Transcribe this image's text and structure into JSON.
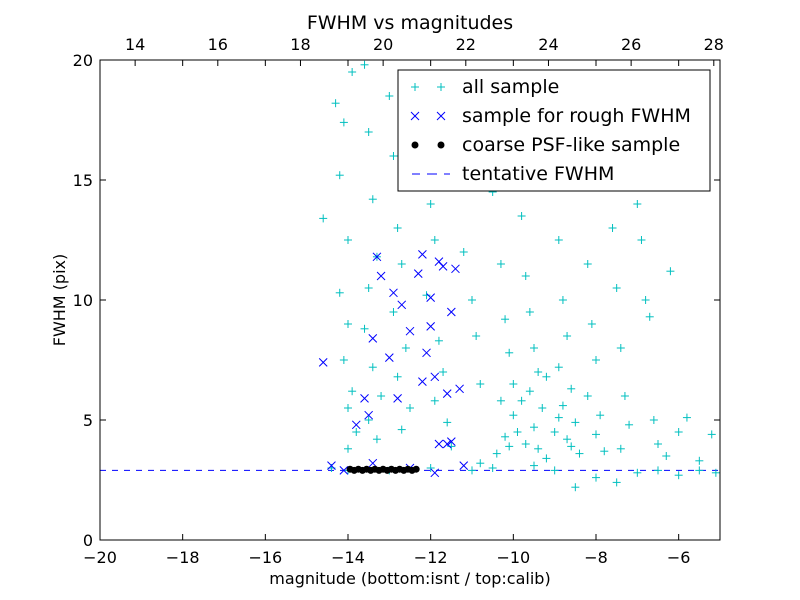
{
  "chart_data": {
    "type": "scatter",
    "title": "FWHM vs magnitudes",
    "xlabel": "magnitude (bottom:isnt / top:calib)",
    "ylabel": "FWHM (pix)",
    "xlim": [
      -20,
      -5
    ],
    "ylim": [
      0,
      20
    ],
    "top_xlim": [
      13.15,
      28.15
    ],
    "x_ticks": [
      -20,
      -18,
      -16,
      -14,
      -12,
      -10,
      -8,
      -6
    ],
    "x_tick_labels": [
      "−20",
      "−18",
      "−16",
      "−14",
      "−12",
      "−10",
      "−8",
      "−6"
    ],
    "top_ticks": [
      14,
      16,
      18,
      20,
      22,
      24,
      26,
      28
    ],
    "top_tick_labels": [
      "14",
      "16",
      "18",
      "20",
      "22",
      "24",
      "26",
      "28"
    ],
    "y_ticks": [
      0,
      5,
      10,
      15,
      20
    ],
    "y_tick_labels": [
      "0",
      "5",
      "10",
      "15",
      "20"
    ],
    "grid": false,
    "legend_position": "top-right",
    "tentative_fwhm": 2.9,
    "series": [
      {
        "name": "all sample",
        "marker": "plus",
        "color": "#00bfbf",
        "points": [
          [
            -14.6,
            13.4
          ],
          [
            -14.3,
            18.2
          ],
          [
            -14.2,
            15.2
          ],
          [
            -14.1,
            17.4
          ],
          [
            -14.0,
            12.5
          ],
          [
            -14.2,
            10.3
          ],
          [
            -14.0,
            9.0
          ],
          [
            -14.1,
            7.5
          ],
          [
            -13.9,
            6.2
          ],
          [
            -14.0,
            5.5
          ],
          [
            -13.8,
            4.5
          ],
          [
            -14.0,
            3.8
          ],
          [
            -13.9,
            19.5
          ],
          [
            -13.6,
            19.8
          ],
          [
            -13.5,
            17.0
          ],
          [
            -13.4,
            14.2
          ],
          [
            -13.3,
            11.8
          ],
          [
            -13.5,
            10.5
          ],
          [
            -13.6,
            8.8
          ],
          [
            -13.4,
            7.2
          ],
          [
            -13.2,
            6.0
          ],
          [
            -13.5,
            5.0
          ],
          [
            -13.3,
            4.2
          ],
          [
            -13.0,
            18.5
          ],
          [
            -12.9,
            16.0
          ],
          [
            -12.8,
            13.0
          ],
          [
            -12.7,
            11.5
          ],
          [
            -12.9,
            9.5
          ],
          [
            -12.6,
            8.0
          ],
          [
            -12.8,
            6.8
          ],
          [
            -12.5,
            5.5
          ],
          [
            -12.7,
            4.6
          ],
          [
            -12.3,
            19.0
          ],
          [
            -12.2,
            15.5
          ],
          [
            -12.0,
            14.0
          ],
          [
            -11.9,
            12.5
          ],
          [
            -12.1,
            10.2
          ],
          [
            -11.8,
            8.3
          ],
          [
            -11.7,
            7.0
          ],
          [
            -11.9,
            5.8
          ],
          [
            -11.6,
            4.9
          ],
          [
            -11.5,
            3.9
          ],
          [
            -11.3,
            16.0
          ],
          [
            -11.2,
            12.0
          ],
          [
            -11.0,
            10.0
          ],
          [
            -10.9,
            8.5
          ],
          [
            -10.8,
            6.5
          ],
          [
            -10.6,
            18.5
          ],
          [
            -10.5,
            14.5
          ],
          [
            -10.3,
            11.5
          ],
          [
            -10.2,
            9.2
          ],
          [
            -10.1,
            7.8
          ],
          [
            -10.0,
            6.5
          ],
          [
            -10.0,
            5.2
          ],
          [
            -10.2,
            4.3
          ],
          [
            -10.4,
            3.6
          ],
          [
            -9.9,
            19.0
          ],
          [
            -9.8,
            13.5
          ],
          [
            -9.7,
            11.0
          ],
          [
            -9.6,
            9.5
          ],
          [
            -9.5,
            8.0
          ],
          [
            -9.4,
            7.0
          ],
          [
            -9.6,
            6.2
          ],
          [
            -9.3,
            5.5
          ],
          [
            -9.5,
            4.7
          ],
          [
            -9.7,
            4.0
          ],
          [
            -9.2,
            3.4
          ],
          [
            -9.0,
            17.5
          ],
          [
            -8.9,
            12.5
          ],
          [
            -8.8,
            10.0
          ],
          [
            -8.7,
            8.5
          ],
          [
            -8.9,
            7.2
          ],
          [
            -8.6,
            6.3
          ],
          [
            -8.8,
            5.6
          ],
          [
            -8.5,
            4.9
          ],
          [
            -8.7,
            4.2
          ],
          [
            -8.4,
            3.6
          ],
          [
            -8.3,
            15.0
          ],
          [
            -8.2,
            11.5
          ],
          [
            -8.1,
            9.0
          ],
          [
            -8.0,
            7.5
          ],
          [
            -8.2,
            6.0
          ],
          [
            -7.9,
            5.2
          ],
          [
            -8.0,
            4.4
          ],
          [
            -7.8,
            3.7
          ],
          [
            -7.6,
            13.0
          ],
          [
            -7.5,
            10.5
          ],
          [
            -7.4,
            8.0
          ],
          [
            -7.3,
            6.0
          ],
          [
            -7.2,
            4.8
          ],
          [
            -7.4,
            3.8
          ],
          [
            -7.0,
            14.0
          ],
          [
            -6.9,
            12.5
          ],
          [
            -6.8,
            10.0
          ],
          [
            -6.7,
            9.3
          ],
          [
            -6.6,
            5.0
          ],
          [
            -6.5,
            4.0
          ],
          [
            -6.3,
            3.5
          ],
          [
            -6.2,
            11.2
          ],
          [
            -6.0,
            4.5
          ],
          [
            -5.8,
            5.1
          ],
          [
            -5.5,
            3.3
          ],
          [
            -5.2,
            4.4
          ],
          [
            -5.1,
            2.8
          ],
          [
            -10.5,
            3.0
          ],
          [
            -9.0,
            2.9
          ],
          [
            -8.0,
            2.6
          ],
          [
            -7.5,
            2.4
          ],
          [
            -7.0,
            2.8
          ],
          [
            -6.5,
            2.9
          ],
          [
            -6.0,
            2.7
          ],
          [
            -5.5,
            2.9
          ],
          [
            -8.5,
            2.2
          ],
          [
            -9.5,
            3.1
          ],
          [
            -10.8,
            3.2
          ],
          [
            -11.0,
            2.9
          ],
          [
            -12.0,
            3.0
          ],
          [
            -13.0,
            2.9
          ],
          [
            -14.0,
            2.9
          ],
          [
            -14.4,
            3.0
          ],
          [
            -9.8,
            5.8
          ],
          [
            -9.2,
            6.8
          ],
          [
            -10.3,
            5.8
          ],
          [
            -9.0,
            4.5
          ],
          [
            -8.6,
            3.9
          ],
          [
            -9.9,
            4.5
          ],
          [
            -10.1,
            3.9
          ],
          [
            -9.4,
            3.8
          ],
          [
            -8.9,
            5.1
          ]
        ]
      },
      {
        "name": "sample for rough FWHM",
        "marker": "x",
        "color": "#0000ff",
        "points": [
          [
            -14.6,
            7.4
          ],
          [
            -14.4,
            3.1
          ],
          [
            -14.1,
            2.9
          ],
          [
            -13.8,
            4.8
          ],
          [
            -13.6,
            5.9
          ],
          [
            -13.5,
            5.2
          ],
          [
            -13.4,
            8.4
          ],
          [
            -13.3,
            11.8
          ],
          [
            -13.2,
            11.0
          ],
          [
            -13.0,
            7.6
          ],
          [
            -12.9,
            10.3
          ],
          [
            -12.8,
            5.9
          ],
          [
            -12.7,
            9.8
          ],
          [
            -12.5,
            8.7
          ],
          [
            -12.3,
            11.1
          ],
          [
            -12.2,
            11.9
          ],
          [
            -12.1,
            7.8
          ],
          [
            -12.0,
            10.1
          ],
          [
            -12.0,
            8.9
          ],
          [
            -11.9,
            6.8
          ],
          [
            -11.8,
            11.6
          ],
          [
            -11.7,
            11.4
          ],
          [
            -11.6,
            6.1
          ],
          [
            -11.5,
            9.5
          ],
          [
            -11.4,
            11.3
          ],
          [
            -11.3,
            6.3
          ],
          [
            -11.8,
            4.0
          ],
          [
            -11.6,
            4.0
          ],
          [
            -11.5,
            4.1
          ],
          [
            -12.2,
            6.6
          ],
          [
            -13.4,
            3.2
          ],
          [
            -12.5,
            3.0
          ],
          [
            -11.2,
            3.1
          ],
          [
            -11.9,
            2.8
          ]
        ]
      },
      {
        "name": "coarse PSF-like sample",
        "marker": "dot",
        "color": "#000000",
        "points": [
          [
            -13.95,
            2.95
          ],
          [
            -13.85,
            2.9
          ],
          [
            -13.75,
            2.95
          ],
          [
            -13.65,
            2.9
          ],
          [
            -13.55,
            2.95
          ],
          [
            -13.45,
            2.9
          ],
          [
            -13.35,
            2.95
          ],
          [
            -13.25,
            2.9
          ],
          [
            -13.15,
            2.95
          ],
          [
            -13.05,
            2.9
          ],
          [
            -12.95,
            2.95
          ],
          [
            -12.85,
            2.9
          ],
          [
            -12.75,
            2.95
          ],
          [
            -12.65,
            2.9
          ],
          [
            -12.55,
            2.95
          ],
          [
            -12.45,
            2.9
          ],
          [
            -12.35,
            2.95
          ]
        ]
      },
      {
        "name": "tentative FWHM",
        "marker": "dashed-line",
        "color": "#0000ff"
      }
    ]
  }
}
